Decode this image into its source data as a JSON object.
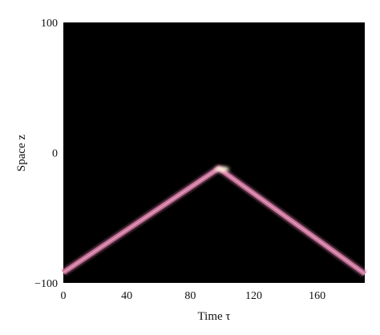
{
  "chart_data": {
    "type": "heatmap",
    "title": "",
    "xlabel": "Time τ",
    "ylabel": "Space z",
    "xlim": [
      0,
      190
    ],
    "ylim": [
      -100,
      100
    ],
    "x_ticks": [
      0,
      40,
      80,
      120,
      160
    ],
    "y_ticks": [
      -100,
      0,
      100
    ],
    "grid": false,
    "background_color": "#000000",
    "trace_color": "#c8729a",
    "peak_color": "#fff4dc",
    "series": [
      {
        "values": [
          {
            "x": 0,
            "y": -92
          },
          {
            "x": 98,
            "y": -12
          },
          {
            "x": 190,
            "y": -93
          }
        ]
      }
    ]
  }
}
